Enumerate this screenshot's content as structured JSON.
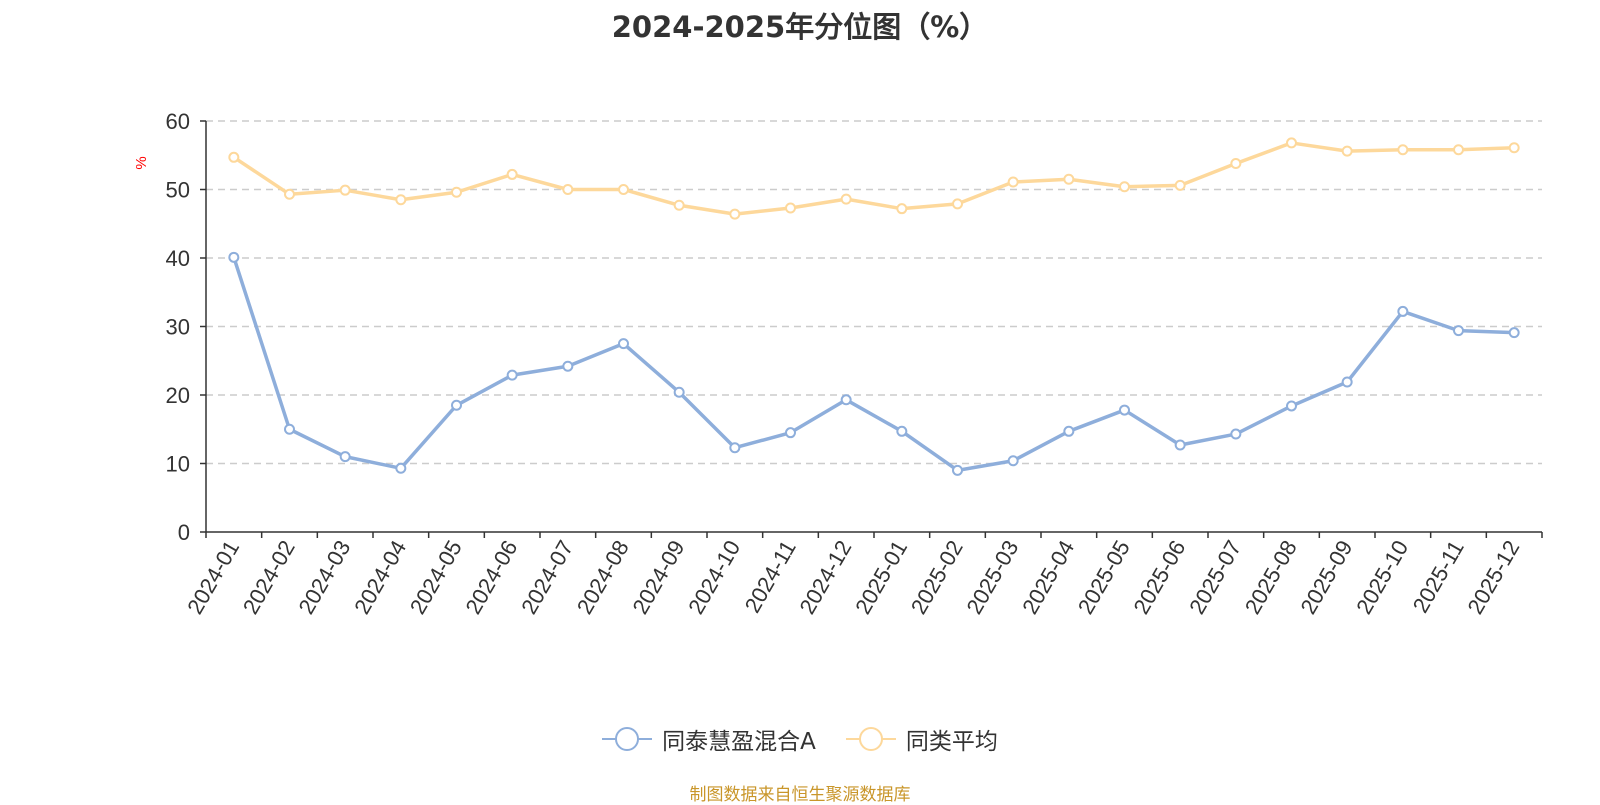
{
  "chart_data": {
    "type": "line",
    "title": "2024-2025年分位图（%）",
    "ylabel": "%",
    "xlabel": "",
    "ylim": [
      0,
      60
    ],
    "yticks": [
      0,
      10,
      20,
      30,
      40,
      50,
      60
    ],
    "grid": "horizontal-dashed",
    "legend_position": "bottom-center",
    "categories": [
      "2024-01",
      "2024-02",
      "2024-03",
      "2024-04",
      "2024-05",
      "2024-06",
      "2024-07",
      "2024-08",
      "2024-09",
      "2024-10",
      "2024-11",
      "2024-12",
      "2025-01",
      "2025-02",
      "2025-03",
      "2025-04",
      "2025-05",
      "2025-06",
      "2025-07",
      "2025-08",
      "2025-09",
      "2025-10",
      "2025-11",
      "2025-12"
    ],
    "series": [
      {
        "name": "同泰慧盈混合A",
        "color": "#8eaedb",
        "values": [
          40.1,
          15.0,
          11.0,
          9.3,
          18.5,
          22.9,
          24.2,
          27.5,
          20.4,
          12.3,
          14.5,
          19.3,
          14.7,
          9.0,
          10.4,
          14.7,
          17.8,
          12.7,
          14.3,
          18.4,
          21.9,
          32.2,
          29.4,
          29.1
        ]
      },
      {
        "name": "同类平均",
        "color": "#fdd89b",
        "values": [
          54.7,
          49.3,
          49.9,
          48.5,
          49.6,
          52.2,
          50.0,
          50.0,
          47.7,
          46.4,
          47.3,
          48.6,
          47.2,
          47.9,
          51.1,
          51.5,
          50.4,
          50.6,
          53.8,
          56.8,
          55.6,
          55.8,
          55.8,
          56.1
        ]
      }
    ]
  },
  "footer": {
    "source_note": "制图数据来自恒生聚源数据库"
  }
}
